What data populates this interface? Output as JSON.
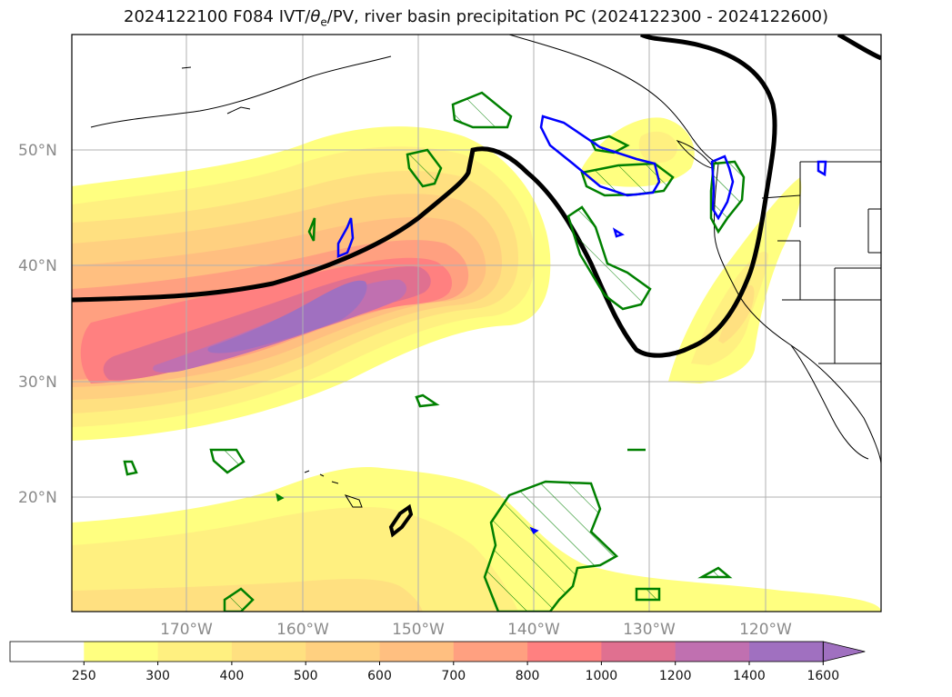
{
  "title": {
    "prefix": "2024122100 F084 IVT/",
    "theta": "θ",
    "theta_sub": "e",
    "suffix": "/PV, river basin precipitation PC (2024122300 - 2024122600)"
  },
  "map": {
    "lat_labels": [
      "50°N",
      "40°N",
      "30°N",
      "20°N"
    ],
    "lon_labels": [
      "170°W",
      "160°W",
      "150°W",
      "140°W",
      "130°W",
      "120°W"
    ],
    "land_color": "#ffffff",
    "coast_color": "#000000",
    "grid_color": "#b0b0b0"
  },
  "colorbar": {
    "ticks": [
      "250",
      "300",
      "400",
      "500",
      "600",
      "700",
      "800",
      "1000",
      "1200",
      "1400",
      "1600"
    ],
    "colors": [
      "#ffffff",
      "#ffff80",
      "#fff080",
      "#ffe080",
      "#ffd080",
      "#ffbf80",
      "#ffa080",
      "#ff8080",
      "#e07090",
      "#c070b0",
      "#a070c0",
      "#a070c0"
    ]
  },
  "legend_colors": {
    "pv_contour": "#000000",
    "green_contour": "#008000",
    "blue_contour": "#0000ff"
  }
}
